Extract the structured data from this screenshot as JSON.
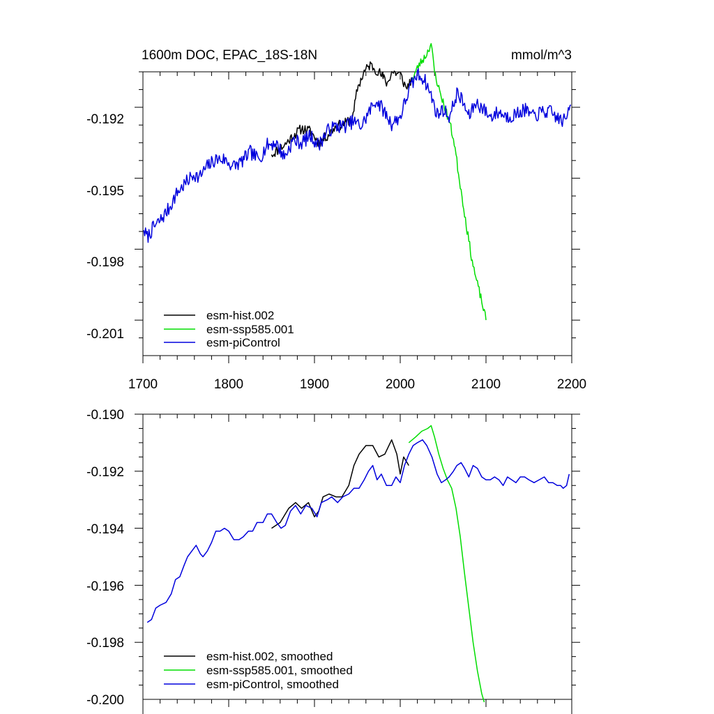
{
  "chart_data": [
    {
      "type": "line",
      "title_left": "1600m DOC, EPAC_18S-18N",
      "title_right": "mmol/m^3",
      "xlim": [
        1700,
        2200
      ],
      "ylim": [
        -0.2025,
        -0.1905
      ],
      "xticks": [
        1700,
        1800,
        1900,
        2000,
        2100,
        2200
      ],
      "xtick_labels": [
        "1700",
        "1800",
        "1900",
        "2000",
        "2100",
        "2200"
      ],
      "yticks": [
        -0.192,
        -0.195,
        -0.198,
        -0.201
      ],
      "ytick_labels": [
        "-0.192",
        "-0.195",
        "-0.198",
        "-0.201"
      ],
      "series": [
        {
          "name": "esm-hist.002",
          "color": "#000000",
          "noise": 0.00022,
          "seed": 11,
          "points": [
            [
              1850,
              -0.194
            ],
            [
              1865,
              -0.1936
            ],
            [
              1875,
              -0.1932
            ],
            [
              1885,
              -0.1929
            ],
            [
              1895,
              -0.193
            ],
            [
              1905,
              -0.1935
            ],
            [
              1915,
              -0.1932
            ],
            [
              1925,
              -0.1928
            ],
            [
              1935,
              -0.1927
            ],
            [
              1945,
              -0.1924
            ],
            [
              1950,
              -0.1912
            ],
            [
              1958,
              -0.1905
            ],
            [
              1965,
              -0.1902
            ],
            [
              1975,
              -0.1905
            ],
            [
              1985,
              -0.191
            ],
            [
              1990,
              -0.1905
            ],
            [
              2000,
              -0.1906
            ],
            [
              2007,
              -0.1912
            ],
            [
              2014,
              -0.1908
            ]
          ]
        },
        {
          "name": "esm-ssp585.001",
          "color": "#00dd00",
          "noise": 0.00018,
          "seed": 23,
          "points": [
            [
              2014,
              -0.1908
            ],
            [
              2022,
              -0.1902
            ],
            [
              2030,
              -0.1898
            ],
            [
              2036,
              -0.1893
            ],
            [
              2040,
              -0.1905
            ],
            [
              2045,
              -0.1912
            ],
            [
              2052,
              -0.192
            ],
            [
              2058,
              -0.1927
            ],
            [
              2063,
              -0.1935
            ],
            [
              2068,
              -0.1948
            ],
            [
              2073,
              -0.196
            ],
            [
              2078,
              -0.1972
            ],
            [
              2083,
              -0.1983
            ],
            [
              2088,
              -0.1992
            ],
            [
              2093,
              -0.1999
            ],
            [
              2100,
              -0.201
            ]
          ]
        },
        {
          "name": "esm-piControl",
          "color": "#0000dd",
          "noise": 0.0003,
          "seed": 7,
          "points": [
            [
              1701,
              -0.1972
            ],
            [
              1705,
              -0.1975
            ],
            [
              1712,
              -0.1971
            ],
            [
              1720,
              -0.1968
            ],
            [
              1730,
              -0.1963
            ],
            [
              1740,
              -0.1956
            ],
            [
              1750,
              -0.1952
            ],
            [
              1760,
              -0.1948
            ],
            [
              1765,
              -0.195
            ],
            [
              1775,
              -0.1945
            ],
            [
              1785,
              -0.1942
            ],
            [
              1795,
              -0.1942
            ],
            [
              1805,
              -0.1945
            ],
            [
              1815,
              -0.1943
            ],
            [
              1825,
              -0.1939
            ],
            [
              1835,
              -0.1942
            ],
            [
              1845,
              -0.1936
            ],
            [
              1855,
              -0.1935
            ],
            [
              1865,
              -0.1941
            ],
            [
              1875,
              -0.1934
            ],
            [
              1885,
              -0.1935
            ],
            [
              1895,
              -0.1932
            ],
            [
              1905,
              -0.1936
            ],
            [
              1915,
              -0.193
            ],
            [
              1925,
              -0.1928
            ],
            [
              1935,
              -0.1928
            ],
            [
              1945,
              -0.1926
            ],
            [
              1955,
              -0.1928
            ],
            [
              1965,
              -0.1921
            ],
            [
              1972,
              -0.1917
            ],
            [
              1980,
              -0.1921
            ],
            [
              1990,
              -0.1927
            ],
            [
              2000,
              -0.1924
            ],
            [
              2010,
              -0.1913
            ],
            [
              2020,
              -0.1906
            ],
            [
              2028,
              -0.1908
            ],
            [
              2036,
              -0.1915
            ],
            [
              2043,
              -0.1923
            ],
            [
              2050,
              -0.1921
            ],
            [
              2058,
              -0.1924
            ],
            [
              2066,
              -0.1914
            ],
            [
              2072,
              -0.1917
            ],
            [
              2080,
              -0.1924
            ],
            [
              2088,
              -0.1918
            ],
            [
              2095,
              -0.192
            ],
            [
              2105,
              -0.1924
            ],
            [
              2115,
              -0.1922
            ],
            [
              2125,
              -0.1924
            ],
            [
              2135,
              -0.1923
            ],
            [
              2145,
              -0.1921
            ],
            [
              2155,
              -0.1924
            ],
            [
              2165,
              -0.1922
            ],
            [
              2175,
              -0.1922
            ],
            [
              2185,
              -0.1925
            ],
            [
              2193,
              -0.1926
            ],
            [
              2197,
              -0.1919
            ],
            [
              2199,
              -0.1919
            ]
          ]
        }
      ],
      "legend": [
        "esm-hist.002",
        "esm-ssp585.001",
        "esm-piControl"
      ],
      "legend_position": "bottom-left"
    },
    {
      "type": "line",
      "xlim": [
        1700,
        2200
      ],
      "ylim": [
        -0.2,
        -0.19
      ],
      "xticks": [
        1700,
        1800,
        1900,
        2000,
        2100,
        2200
      ],
      "yticks": [
        -0.19,
        -0.192,
        -0.194,
        -0.196,
        -0.198,
        -0.2
      ],
      "ytick_labels": [
        "-0.190",
        "-0.192",
        "-0.194",
        "-0.196",
        "-0.198",
        "-0.200"
      ],
      "series": [
        {
          "name": "esm-hist.002, smoothed",
          "color": "#000000",
          "points": [
            [
              1850,
              -0.194
            ],
            [
              1860,
              -0.1938
            ],
            [
              1870,
              -0.1933
            ],
            [
              1878,
              -0.1931
            ],
            [
              1885,
              -0.1933
            ],
            [
              1893,
              -0.1931
            ],
            [
              1900,
              -0.1936
            ],
            [
              1905,
              -0.1934
            ],
            [
              1910,
              -0.1929
            ],
            [
              1917,
              -0.1928
            ],
            [
              1925,
              -0.1929
            ],
            [
              1932,
              -0.1929
            ],
            [
              1940,
              -0.1925
            ],
            [
              1946,
              -0.1918
            ],
            [
              1952,
              -0.1914
            ],
            [
              1960,
              -0.1911
            ],
            [
              1968,
              -0.1911
            ],
            [
              1975,
              -0.1915
            ],
            [
              1982,
              -0.1914
            ],
            [
              1990,
              -0.1909
            ],
            [
              1996,
              -0.1914
            ],
            [
              2000,
              -0.1921
            ],
            [
              2004,
              -0.1915
            ],
            [
              2010,
              -0.1918
            ]
          ]
        },
        {
          "name": "esm-ssp585.001, smoothed",
          "color": "#00dd00",
          "points": [
            [
              2010,
              -0.191
            ],
            [
              2018,
              -0.1908
            ],
            [
              2025,
              -0.1906
            ],
            [
              2032,
              -0.1905
            ],
            [
              2036,
              -0.1904
            ],
            [
              2040,
              -0.1908
            ],
            [
              2045,
              -0.1914
            ],
            [
              2050,
              -0.1919
            ],
            [
              2055,
              -0.1923
            ],
            [
              2060,
              -0.1926
            ],
            [
              2065,
              -0.1933
            ],
            [
              2070,
              -0.1943
            ],
            [
              2075,
              -0.1956
            ],
            [
              2080,
              -0.1968
            ],
            [
              2085,
              -0.198
            ],
            [
              2090,
              -0.199
            ],
            [
              2095,
              -0.1998
            ],
            [
              2098,
              -0.2001
            ]
          ]
        },
        {
          "name": "esm-piControl, smoothed",
          "color": "#0000dd",
          "points": [
            [
              1705,
              -0.1973
            ],
            [
              1710,
              -0.1972
            ],
            [
              1715,
              -0.1968
            ],
            [
              1720,
              -0.1967
            ],
            [
              1727,
              -0.1966
            ],
            [
              1733,
              -0.1963
            ],
            [
              1738,
              -0.1958
            ],
            [
              1743,
              -0.1957
            ],
            [
              1748,
              -0.1953
            ],
            [
              1752,
              -0.195
            ],
            [
              1757,
              -0.1948
            ],
            [
              1762,
              -0.1946
            ],
            [
              1767,
              -0.1949
            ],
            [
              1770,
              -0.195
            ],
            [
              1775,
              -0.1948
            ],
            [
              1780,
              -0.1945
            ],
            [
              1785,
              -0.1941
            ],
            [
              1790,
              -0.1941
            ],
            [
              1795,
              -0.194
            ],
            [
              1800,
              -0.1941
            ],
            [
              1806,
              -0.1944
            ],
            [
              1812,
              -0.1944
            ],
            [
              1817,
              -0.1943
            ],
            [
              1823,
              -0.1941
            ],
            [
              1828,
              -0.1941
            ],
            [
              1833,
              -0.1938
            ],
            [
              1840,
              -0.1938
            ],
            [
              1845,
              -0.1935
            ],
            [
              1850,
              -0.1935
            ],
            [
              1856,
              -0.1938
            ],
            [
              1861,
              -0.194
            ],
            [
              1866,
              -0.1939
            ],
            [
              1872,
              -0.1934
            ],
            [
              1878,
              -0.1932
            ],
            [
              1884,
              -0.1935
            ],
            [
              1890,
              -0.1932
            ],
            [
              1897,
              -0.1933
            ],
            [
              1903,
              -0.1936
            ],
            [
              1908,
              -0.1931
            ],
            [
              1915,
              -0.193
            ],
            [
              1920,
              -0.1929
            ],
            [
              1927,
              -0.1931
            ],
            [
              1933,
              -0.1929
            ],
            [
              1940,
              -0.1928
            ],
            [
              1946,
              -0.1926
            ],
            [
              1952,
              -0.1926
            ],
            [
              1958,
              -0.1923
            ],
            [
              1963,
              -0.192
            ],
            [
              1968,
              -0.1918
            ],
            [
              1973,
              -0.1923
            ],
            [
              1978,
              -0.1921
            ],
            [
              1984,
              -0.1925
            ],
            [
              1990,
              -0.1925
            ],
            [
              1995,
              -0.1922
            ],
            [
              2000,
              -0.1924
            ],
            [
              2005,
              -0.1918
            ],
            [
              2010,
              -0.1914
            ],
            [
              2015,
              -0.1911
            ],
            [
              2020,
              -0.191
            ],
            [
              2026,
              -0.1909
            ],
            [
              2031,
              -0.1911
            ],
            [
              2037,
              -0.1915
            ],
            [
              2043,
              -0.1921
            ],
            [
              2048,
              -0.1924
            ],
            [
              2053,
              -0.1923
            ],
            [
              2057,
              -0.1922
            ],
            [
              2062,
              -0.192
            ],
            [
              2066,
              -0.1918
            ],
            [
              2071,
              -0.1917
            ],
            [
              2075,
              -0.1919
            ],
            [
              2080,
              -0.1922
            ],
            [
              2085,
              -0.1918
            ],
            [
              2090,
              -0.1919
            ],
            [
              2095,
              -0.1922
            ],
            [
              2100,
              -0.1923
            ],
            [
              2105,
              -0.1923
            ],
            [
              2110,
              -0.1922
            ],
            [
              2115,
              -0.1923
            ],
            [
              2120,
              -0.1925
            ],
            [
              2125,
              -0.1922
            ],
            [
              2130,
              -0.1923
            ],
            [
              2135,
              -0.1924
            ],
            [
              2140,
              -0.1922
            ],
            [
              2145,
              -0.1922
            ],
            [
              2150,
              -0.1923
            ],
            [
              2156,
              -0.1924
            ],
            [
              2162,
              -0.1923
            ],
            [
              2168,
              -0.1922
            ],
            [
              2173,
              -0.1924
            ],
            [
              2178,
              -0.1924
            ],
            [
              2183,
              -0.1925
            ],
            [
              2187,
              -0.1925
            ],
            [
              2190,
              -0.1926
            ],
            [
              2194,
              -0.1925
            ],
            [
              2197,
              -0.1921
            ]
          ]
        }
      ],
      "legend": [
        "esm-hist.002, smoothed",
        "esm-ssp585.001, smoothed",
        "esm-piControl, smoothed"
      ],
      "legend_position": "bottom-left"
    }
  ]
}
